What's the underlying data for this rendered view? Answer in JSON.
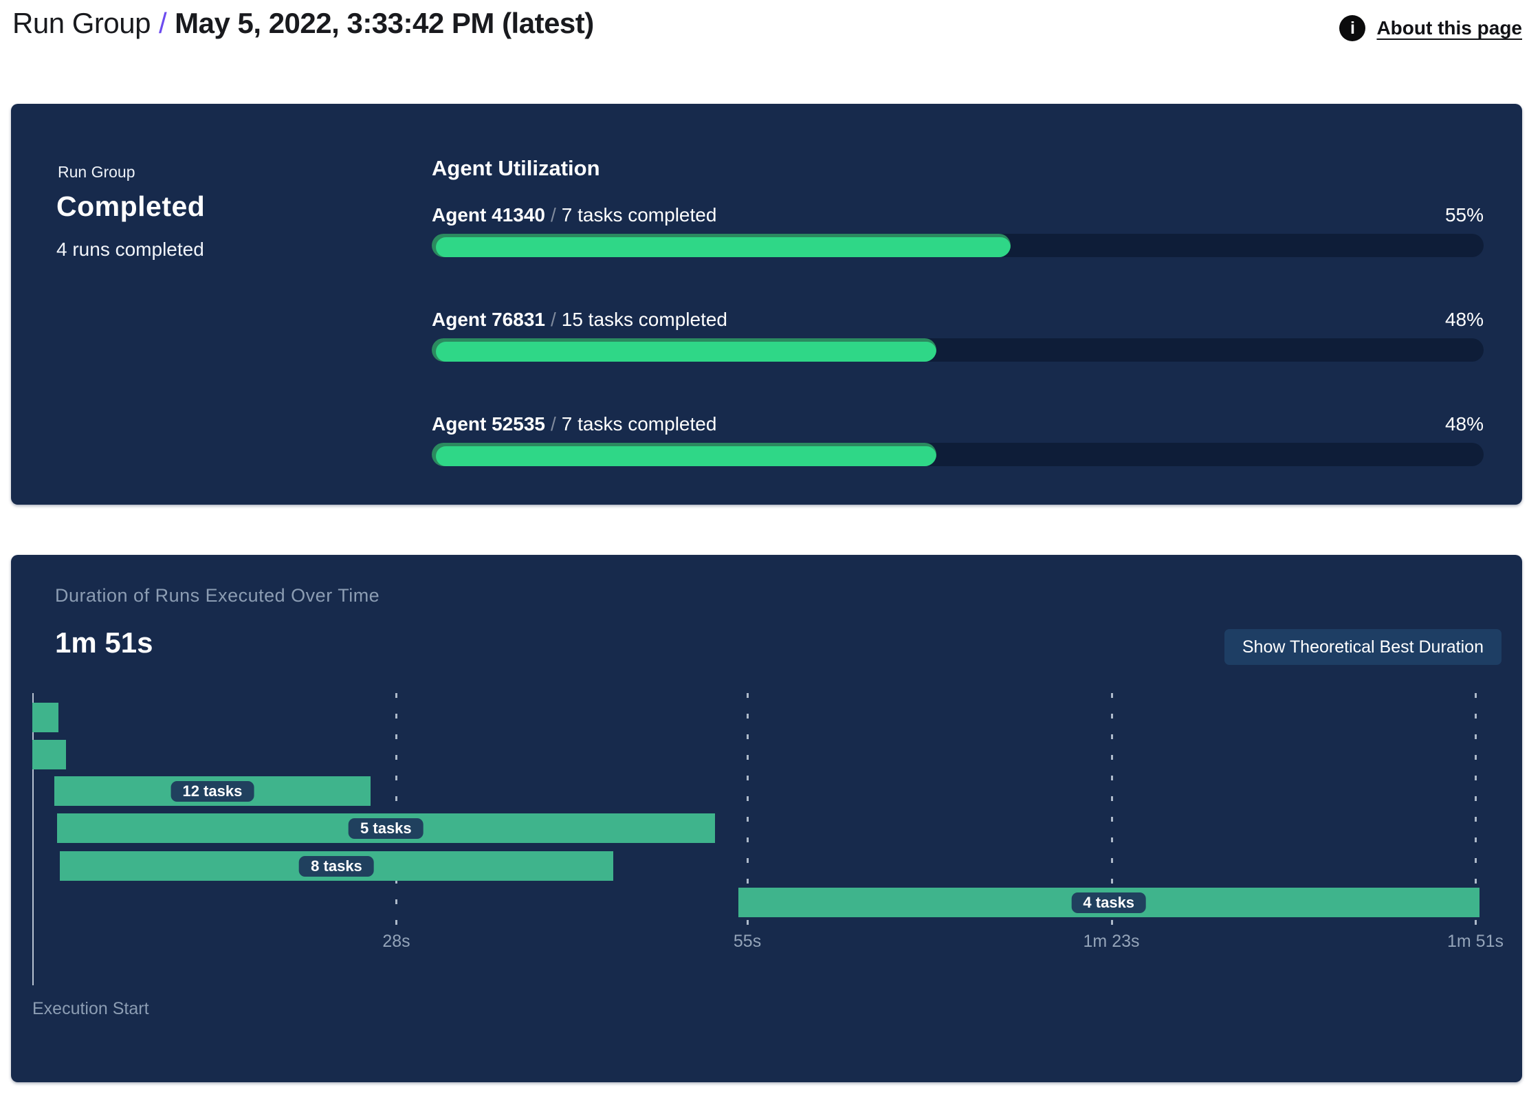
{
  "header": {
    "breadcrumb_root": "Run Group",
    "separator": "/",
    "title": "May 5, 2022, 3:33:42 PM (latest)",
    "about_link": "About this page",
    "info_icon_glyph": "i"
  },
  "run_summary": {
    "overline": "Run Group",
    "status": "Completed",
    "runs_completed": "4 runs completed"
  },
  "agent_utilization": {
    "heading": "Agent Utilization",
    "agents": [
      {
        "name": "Agent 41340",
        "separator": "/",
        "tasks": "7 tasks completed",
        "percent_label": "55%",
        "percent": 55
      },
      {
        "name": "Agent 76831",
        "separator": "/",
        "tasks": "15 tasks completed",
        "percent_label": "48%",
        "percent": 48
      },
      {
        "name": "Agent 52535",
        "separator": "/",
        "tasks": "7 tasks completed",
        "percent_label": "48%",
        "percent": 48
      }
    ]
  },
  "duration_panel": {
    "title": "Duration of Runs Executed Over Time",
    "total_duration": "1m 51s",
    "button_label": "Show Theoretical Best Duration",
    "axis_label": "Execution Start"
  },
  "chart_data": {
    "type": "gantt",
    "title": "Duration of Runs Executed Over Time",
    "total_duration_label": "1m 51s",
    "x_unit": "seconds",
    "xlim": [
      0,
      114
    ],
    "x_ticks": [
      {
        "label": "28s",
        "seconds": 28
      },
      {
        "label": "55s",
        "seconds": 55
      },
      {
        "label": "1m 23s",
        "seconds": 83
      },
      {
        "label": "1m 51s",
        "seconds": 111
      }
    ],
    "bars": [
      {
        "label": "",
        "start_s": 0.0,
        "end_s": 2.0
      },
      {
        "label": "",
        "start_s": 0.0,
        "end_s": 2.6
      },
      {
        "label": "12 tasks",
        "start_s": 1.7,
        "end_s": 26.0
      },
      {
        "label": "5 tasks",
        "start_s": 1.9,
        "end_s": 52.5
      },
      {
        "label": "8 tasks",
        "start_s": 2.1,
        "end_s": 44.7
      },
      {
        "label": "4 tasks",
        "start_s": 54.3,
        "end_s": 111.3
      }
    ],
    "axis_label": "Execution Start",
    "grid": "dashed-vertical",
    "legend": "none"
  },
  "colors": {
    "panel_bg": "#172a4c",
    "progress_track": "#0e1d38",
    "progress_fill": "#2fd787",
    "progress_rim": "#2b8a5f",
    "gantt_bar": "#3fb48c",
    "pill_bg": "#20405e",
    "accent_purple": "#6c4bef",
    "muted_text": "#8c9db3"
  }
}
